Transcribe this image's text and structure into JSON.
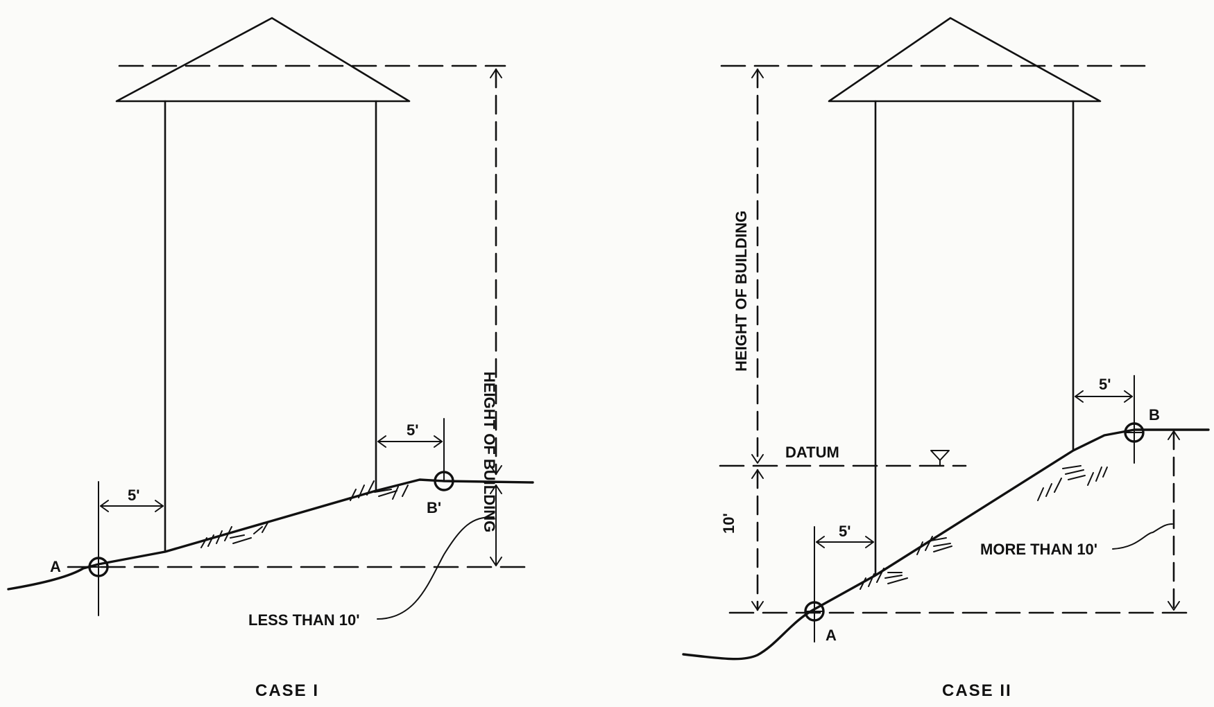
{
  "case_i": {
    "caption": "CASE I",
    "height_label": "HEIGHT OF BUILDING",
    "left_offset": "5'",
    "right_offset": "5'",
    "point_a": "A",
    "point_b": "B'",
    "difference_note": "LESS THAN 10'"
  },
  "case_ii": {
    "caption": "CASE II",
    "height_label": "HEIGHT OF BUILDING",
    "datum_label": "DATUM",
    "datum_offset": "10'",
    "left_offset": "5'",
    "right_offset": "5'",
    "point_a": "A",
    "point_b": "B",
    "difference_note": "MORE THAN 10'"
  },
  "colors": {
    "ink": "#111111",
    "paper": "#fbfbf9"
  }
}
